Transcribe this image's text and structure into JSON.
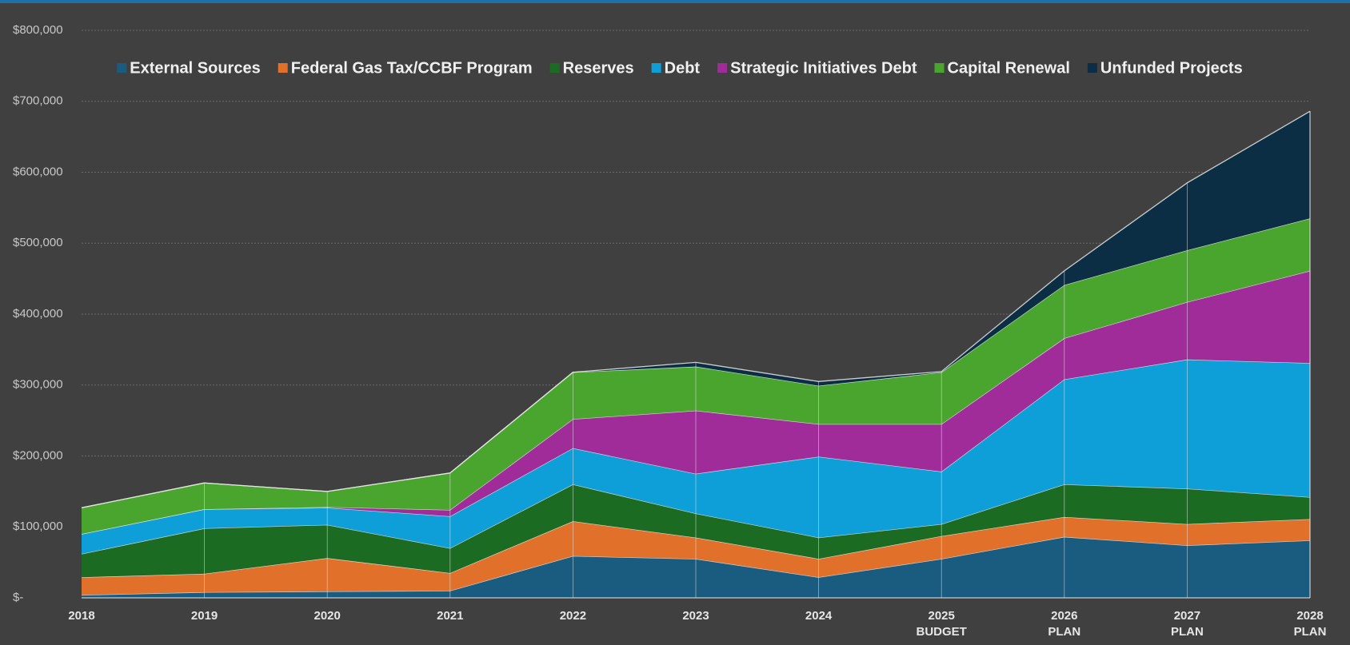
{
  "chart_data": {
    "type": "stacked-area",
    "categories": [
      "2018",
      "2019",
      "2020",
      "2021",
      "2022",
      "2023",
      "2024",
      "2025",
      "2026",
      "2027",
      "2028"
    ],
    "category_notes": [
      null,
      null,
      null,
      null,
      null,
      null,
      null,
      "BUDGET",
      "PLAN",
      "PLAN",
      "PLAN"
    ],
    "series": [
      {
        "name": "External Sources",
        "color": "#1a5b80",
        "values": [
          4000,
          8000,
          9000,
          10000,
          59000,
          55000,
          29000,
          55000,
          86000,
          74000,
          81000
        ]
      },
      {
        "name": "Federal Gas Tax/CCBF Program",
        "color": "#e0702a",
        "values": [
          25000,
          26000,
          47000,
          25000,
          49000,
          30000,
          26000,
          32000,
          28000,
          30000,
          30000
        ]
      },
      {
        "name": "Reserves",
        "color": "#1b6b23",
        "values": [
          33000,
          64000,
          47000,
          35000,
          52000,
          34000,
          30000,
          17000,
          46000,
          50000,
          31000
        ]
      },
      {
        "name": "Debt",
        "color": "#0e9fd8",
        "values": [
          28000,
          27000,
          24000,
          45000,
          51000,
          56000,
          114000,
          74000,
          148000,
          182000,
          189000
        ]
      },
      {
        "name": "Strategic Initiatives Debt",
        "color": "#a02c9a",
        "values": [
          0,
          0,
          1000,
          9000,
          41000,
          89000,
          46000,
          67000,
          58000,
          81000,
          130000
        ]
      },
      {
        "name": "Capital Renewal",
        "color": "#4aa52e",
        "values": [
          37000,
          37000,
          22000,
          52000,
          66000,
          62000,
          54000,
          73000,
          75000,
          73000,
          74000
        ]
      },
      {
        "name": "Unfunded Projects",
        "color": "#0c2e45",
        "values": [
          0,
          0,
          0,
          0,
          0,
          6000,
          6000,
          1000,
          20000,
          95000,
          151000
        ]
      }
    ],
    "ylim": [
      0,
      800000
    ],
    "yticks": [
      {
        "value": 0,
        "label": "$-"
      },
      {
        "value": 100000,
        "label": "$100,000"
      },
      {
        "value": 200000,
        "label": "$200,000"
      },
      {
        "value": 300000,
        "label": "$300,000"
      },
      {
        "value": 400000,
        "label": "$400,000"
      },
      {
        "value": 500000,
        "label": "$500,000"
      },
      {
        "value": 600000,
        "label": "$600,000"
      },
      {
        "value": 700000,
        "label": "$700,000"
      },
      {
        "value": 800000,
        "label": "$800,000"
      }
    ],
    "grid": true,
    "legend": "top"
  }
}
